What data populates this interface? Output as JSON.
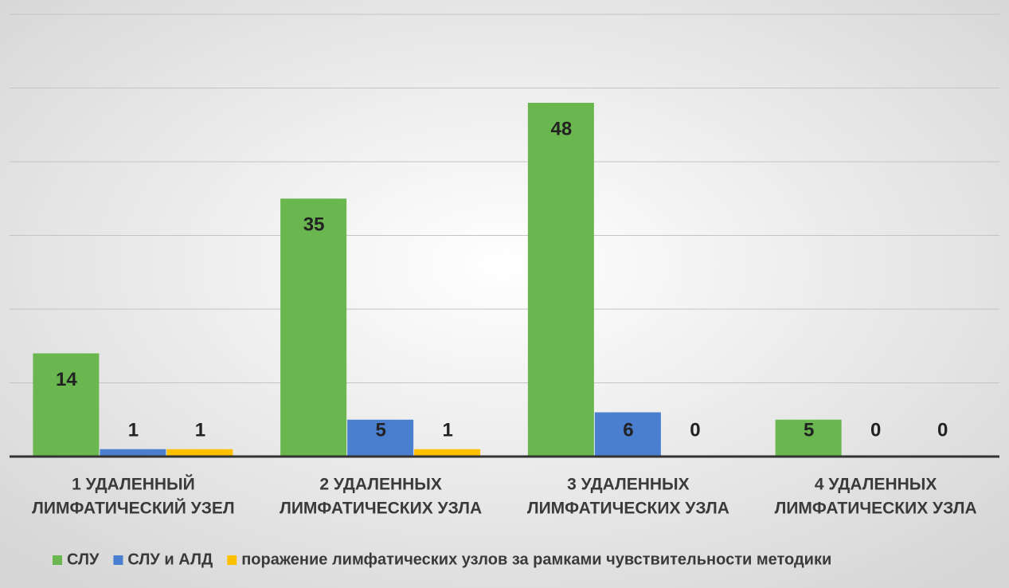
{
  "chart_data": {
    "type": "bar",
    "categories": [
      [
        "1 УДАЛЕННЫЙ",
        "ЛИМФАТИЧЕСКИЙ УЗЕЛ"
      ],
      [
        "2 УДАЛЕННЫХ",
        "ЛИМФАТИЧЕСКИХ УЗЛА"
      ],
      [
        "3 УДАЛЕННЫХ",
        "ЛИМФАТИЧЕСКИХ УЗЛА"
      ],
      [
        "4 УДАЛЕННЫХ",
        "ЛИМФАТИЧЕСКИХ УЗЛА"
      ]
    ],
    "series": [
      {
        "name": "СЛУ",
        "color": "#6ab74f",
        "values": [
          14,
          35,
          48,
          5
        ]
      },
      {
        "name": "СЛУ и АЛД",
        "color": "#4a7fd0",
        "values": [
          1,
          5,
          6,
          0
        ]
      },
      {
        "name": "поражение лимфатических узлов за рамками чувствительности методики",
        "color": "#ffc000",
        "values": [
          1,
          1,
          0,
          0
        ]
      }
    ],
    "ylim": [
      0,
      60
    ],
    "yticks": [
      0,
      10,
      20,
      30,
      40,
      50,
      60
    ],
    "grid": true
  }
}
